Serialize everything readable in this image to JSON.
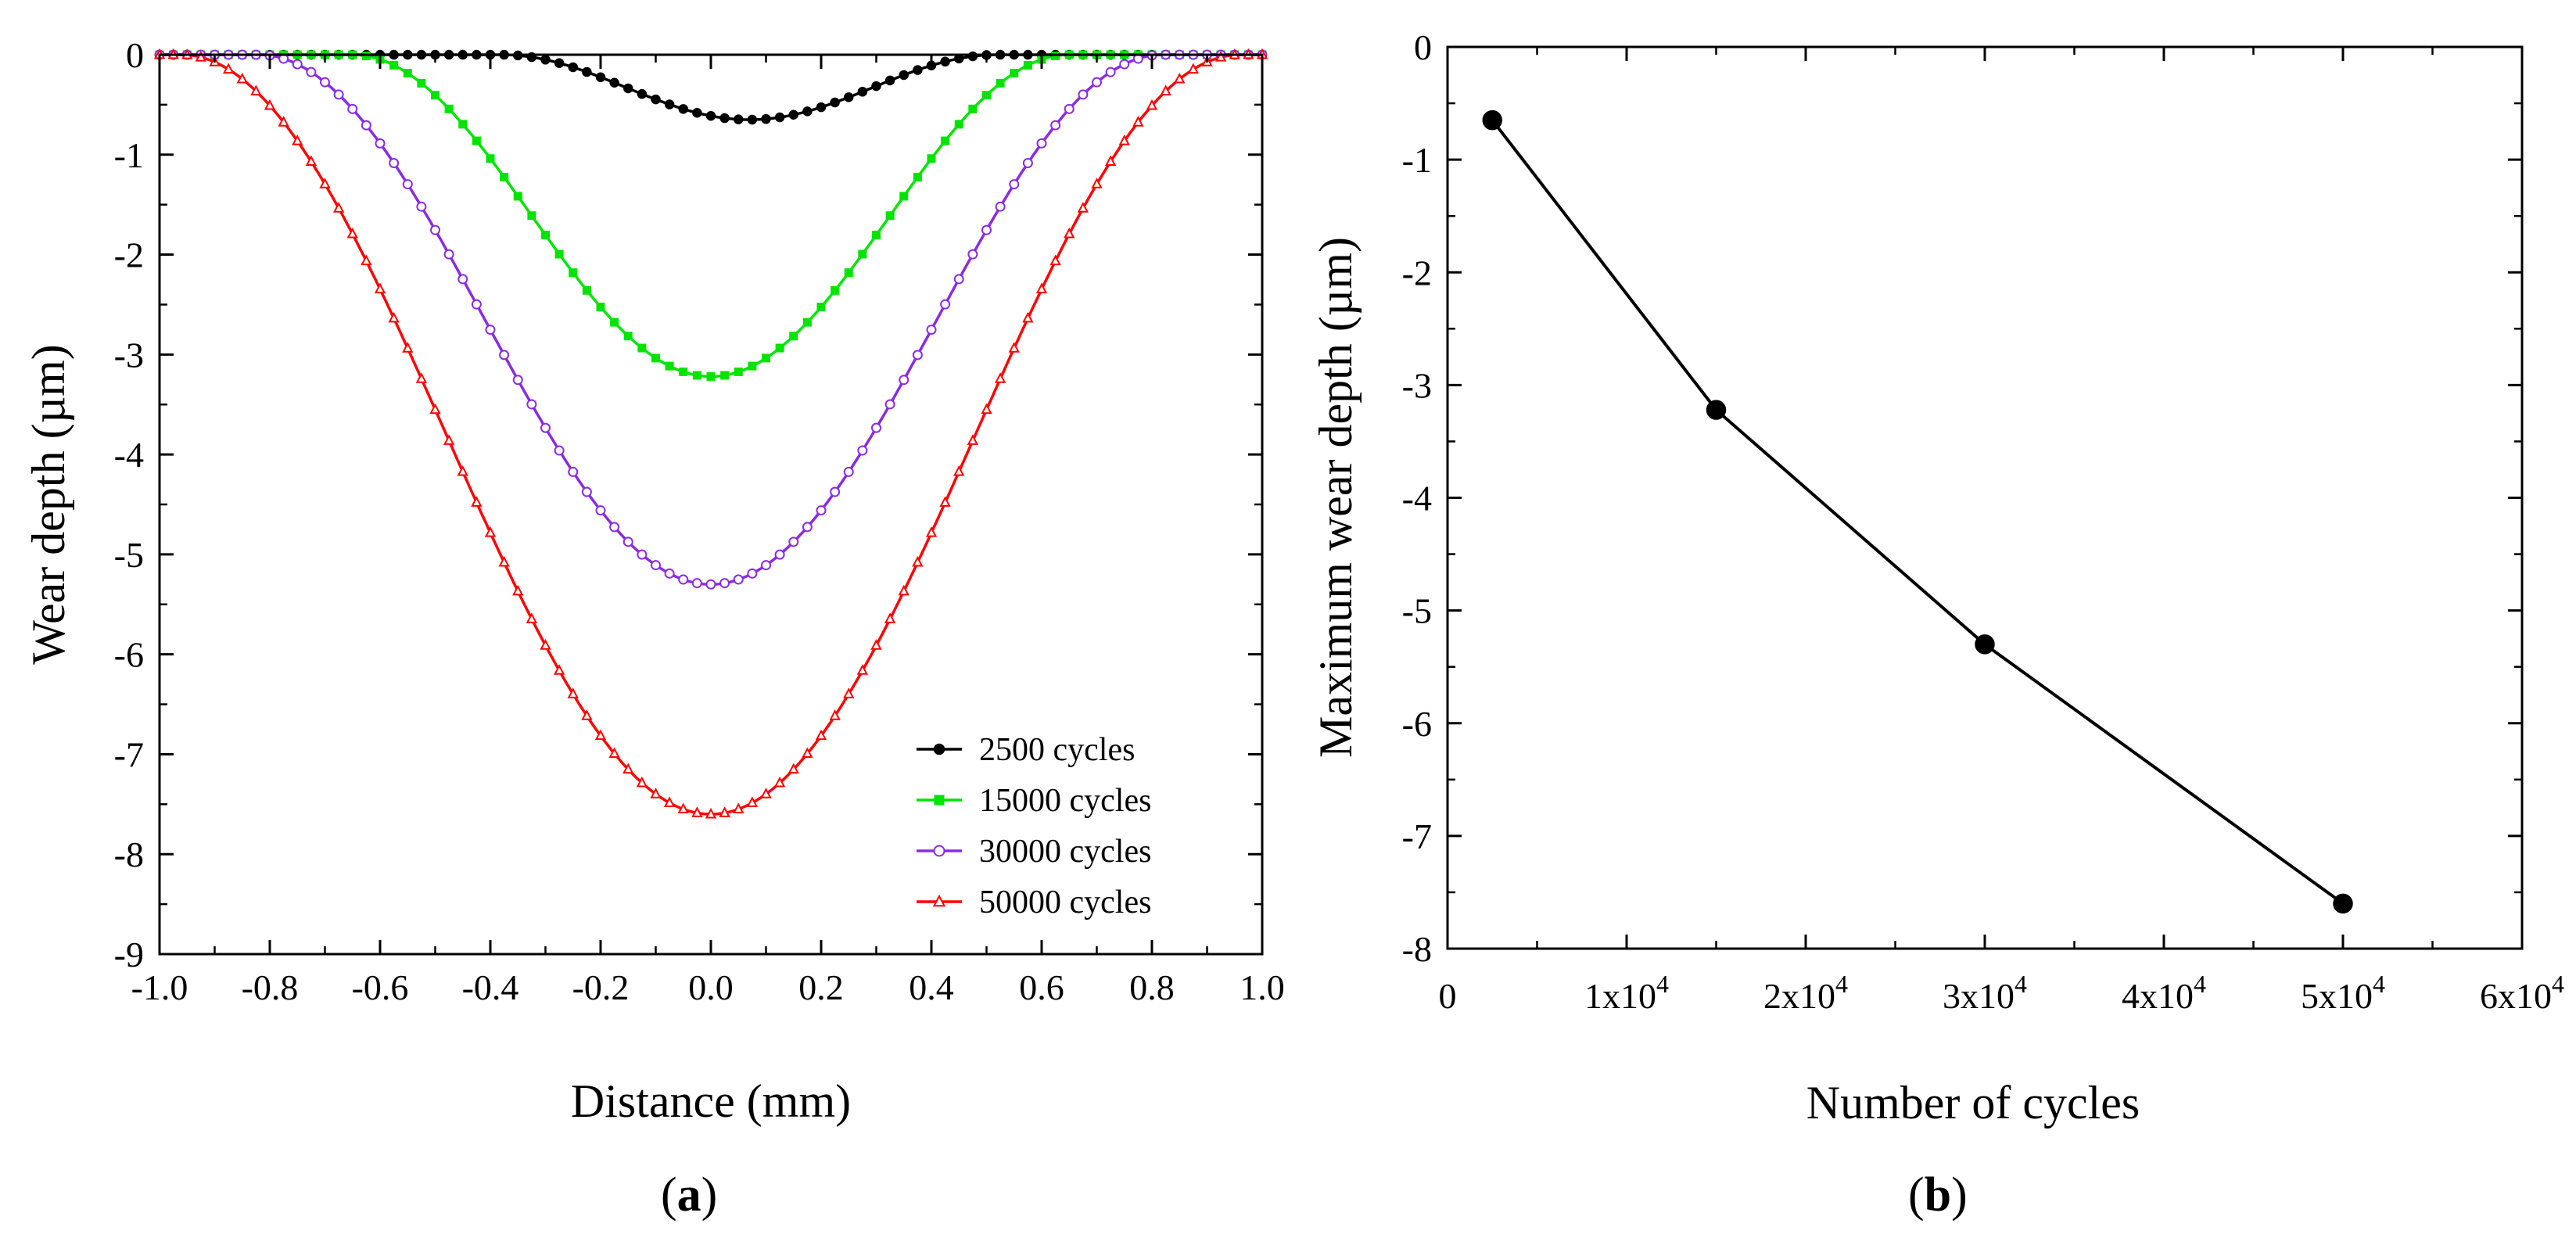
{
  "chart_data": [
    {
      "type": "line",
      "panel_label_open": "(",
      "panel_label_letter": "a",
      "panel_label_close": ")",
      "xlabel": "Distance (mm)",
      "ylabel": "Wear depth (µm)",
      "xlim": [
        -1.0,
        1.0
      ],
      "ylim": [
        -9,
        0
      ],
      "xticks": [
        -1.0,
        -0.8,
        -0.6,
        -0.4,
        -0.2,
        0.0,
        0.2,
        0.4,
        0.6,
        0.8,
        1.0
      ],
      "xtick_labels": [
        "-1.0",
        "-0.8",
        "-0.6",
        "-0.4",
        "-0.2",
        "0.0",
        "0.2",
        "0.4",
        "0.6",
        "0.8",
        "1.0"
      ],
      "yticks": [
        0,
        -1,
        -2,
        -3,
        -4,
        -5,
        -6,
        -7,
        -8,
        -9
      ],
      "ytick_labels": [
        "0",
        "-1",
        "-2",
        "-3",
        "-4",
        "-5",
        "-6",
        "-7",
        "-8",
        "-9"
      ],
      "legend_position": "bottom-right",
      "grid": false,
      "series": [
        {
          "name": "2500 cycles",
          "color": "#000000",
          "marker": "filled-circle",
          "x0": 0.07,
          "half_width": 0.45,
          "depth": -0.65
        },
        {
          "name": "15000 cycles",
          "color": "#00e400",
          "marker": "filled-square",
          "x0": 0.0,
          "half_width": 0.65,
          "depth": -3.22
        },
        {
          "name": "30000 cycles",
          "color": "#8a2be2",
          "marker": "open-circle",
          "x0": 0.0,
          "half_width": 0.82,
          "depth": -5.3
        },
        {
          "name": "50000 cycles",
          "color": "#ff0000",
          "marker": "open-triangle",
          "x0": 0.0,
          "half_width": 0.96,
          "depth": -7.6
        }
      ]
    },
    {
      "type": "line",
      "panel_label_open": "(",
      "panel_label_letter": "b",
      "panel_label_close": ")",
      "xlabel": "Number of cycles",
      "ylabel": "Maximum wear depth (µm)",
      "xlim": [
        0,
        60000
      ],
      "ylim": [
        -8,
        0
      ],
      "xticks": [
        0,
        10000,
        20000,
        30000,
        40000,
        50000,
        60000
      ],
      "xtick_labels": [
        {
          "base": "0",
          "exp": ""
        },
        {
          "base": "1x10",
          "exp": "4"
        },
        {
          "base": "2x10",
          "exp": "4"
        },
        {
          "base": "3x10",
          "exp": "4"
        },
        {
          "base": "4x10",
          "exp": "4"
        },
        {
          "base": "5x10",
          "exp": "4"
        },
        {
          "base": "6x10",
          "exp": "4"
        }
      ],
      "yticks": [
        0,
        -1,
        -2,
        -3,
        -4,
        -5,
        -6,
        -7,
        -8
      ],
      "ytick_labels": [
        "0",
        "-1",
        "-2",
        "-3",
        "-4",
        "-5",
        "-6",
        "-7",
        "-8"
      ],
      "grid": false,
      "series": [
        {
          "name": "Maximum wear depth",
          "color": "#000000",
          "marker": "filled-circle",
          "x": [
            2500,
            15000,
            30000,
            50000
          ],
          "y": [
            -0.65,
            -3.22,
            -5.3,
            -7.6
          ]
        }
      ]
    }
  ]
}
